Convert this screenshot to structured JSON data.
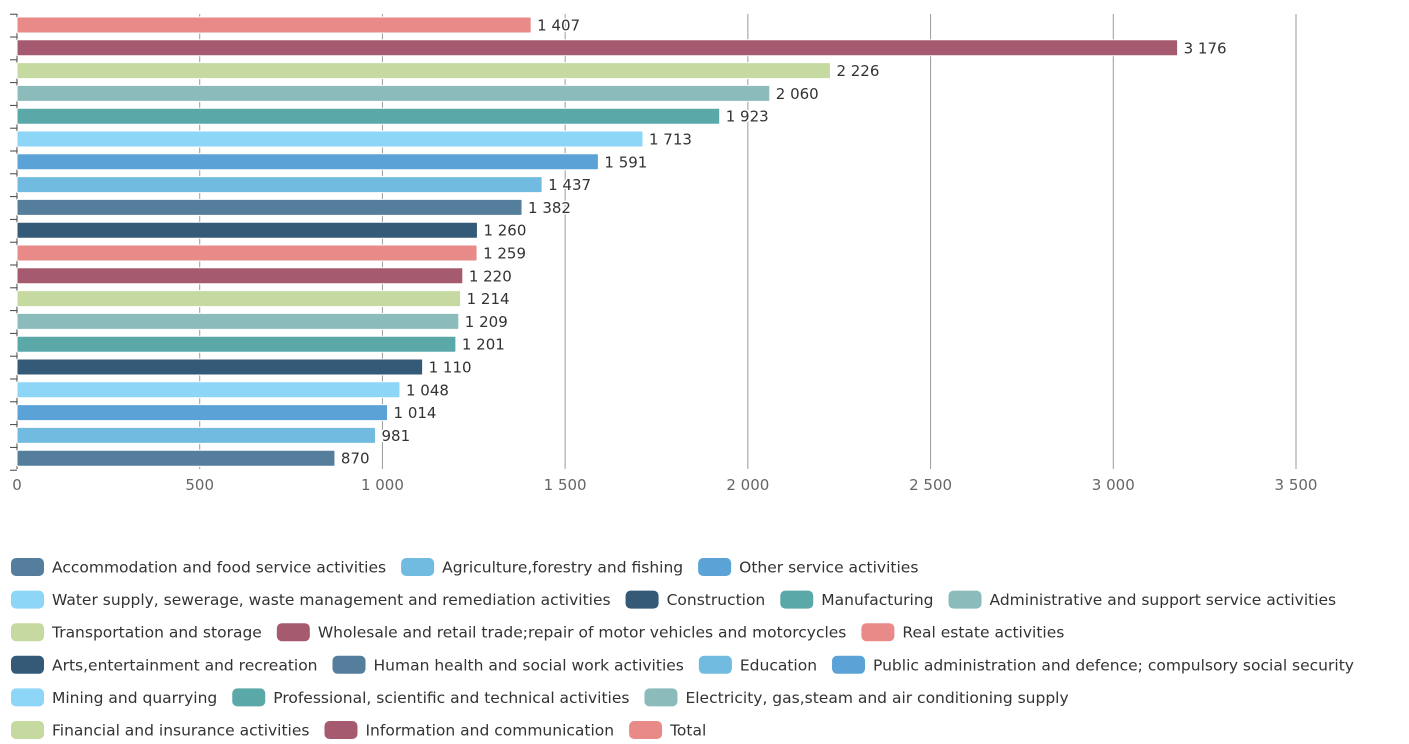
{
  "chart_data": {
    "type": "bar",
    "orientation": "horizontal",
    "title": "",
    "xlabel": "",
    "ylabel": "",
    "xlim": [
      0,
      3500
    ],
    "x_ticks": [
      0,
      500,
      1000,
      1500,
      2000,
      2500,
      3000,
      3500
    ],
    "x_tick_labels": [
      "0",
      "500",
      "1 000",
      "1 500",
      "2 000",
      "2 500",
      "3 000",
      "3 500"
    ],
    "grid": "vertical",
    "legend_position": "bottom",
    "series": [
      {
        "name": "Total",
        "value": 1407,
        "label": "1 407",
        "color": "#e88a88"
      },
      {
        "name": "Information and communication",
        "value": 3176,
        "label": "3 176",
        "color": "#a65a70"
      },
      {
        "name": "Financial and insurance activities",
        "value": 2226,
        "label": "2 226",
        "color": "#c5d9a0"
      },
      {
        "name": "Electricity, gas,steam and air conditioning supply",
        "value": 2060,
        "label": "2 060",
        "color": "#8bbcbb"
      },
      {
        "name": "Professional, scientific and technical activities",
        "value": 1923,
        "label": "1 923",
        "color": "#5aa8a8"
      },
      {
        "name": "Mining and quarrying",
        "value": 1713,
        "label": "1 713",
        "color": "#8dd6f8"
      },
      {
        "name": "Public administration and defence; compulsory social security",
        "value": 1591,
        "label": "1 591",
        "color": "#5ba3d6"
      },
      {
        "name": "Education",
        "value": 1437,
        "label": "1 437",
        "color": "#72bbe0"
      },
      {
        "name": "Human health and social work activities",
        "value": 1382,
        "label": "1 382",
        "color": "#557e9c"
      },
      {
        "name": "Arts,entertainment and recreation",
        "value": 1260,
        "label": "1 260",
        "color": "#345a78"
      },
      {
        "name": "Real estate activities",
        "value": 1259,
        "label": "1 259",
        "color": "#e88a88"
      },
      {
        "name": "Wholesale and retail trade;repair of motor vehicles and motorcycles",
        "value": 1220,
        "label": "1 220",
        "color": "#a65a70"
      },
      {
        "name": "Transportation and storage",
        "value": 1214,
        "label": "1 214",
        "color": "#c5d9a0"
      },
      {
        "name": "Administrative and support service activities",
        "value": 1209,
        "label": "1 209",
        "color": "#8bbcbb"
      },
      {
        "name": "Manufacturing",
        "value": 1201,
        "label": "1 201",
        "color": "#5aa8a8"
      },
      {
        "name": "Construction",
        "value": 1110,
        "label": "1 110",
        "color": "#345a78"
      },
      {
        "name": "Water supply, sewerage, waste management and remediation activities",
        "value": 1048,
        "label": "1 048",
        "color": "#8dd6f8"
      },
      {
        "name": "Other service activities",
        "value": 1014,
        "label": "1 014",
        "color": "#5ba3d6"
      },
      {
        "name": "Agriculture,forestry and fishing",
        "value": 981,
        "label": "981",
        "color": "#72bbe0"
      },
      {
        "name": "Accommodation and food service activities",
        "value": 870,
        "label": "870",
        "color": "#557e9c"
      }
    ],
    "legend_rows": [
      [
        "Accommodation and food service activities",
        "Agriculture,forestry and fishing",
        "Other service activities"
      ],
      [
        "Water supply, sewerage, waste management and remediation activities",
        "Construction",
        "Manufacturing",
        "Administrative and support service activities"
      ],
      [
        "Transportation and storage",
        "Wholesale and retail trade;repair of motor vehicles and motorcycles",
        "Real estate activities"
      ],
      [
        "Arts,entertainment and recreation",
        "Human health and social work activities",
        "Education",
        "Public administration and defence; compulsory social security"
      ],
      [
        "Mining and quarrying",
        "Professional, scientific and technical activities",
        "Electricity, gas,steam and air conditioning supply"
      ],
      [
        "Financial and insurance activities",
        "Information and communication",
        "Total"
      ]
    ]
  }
}
